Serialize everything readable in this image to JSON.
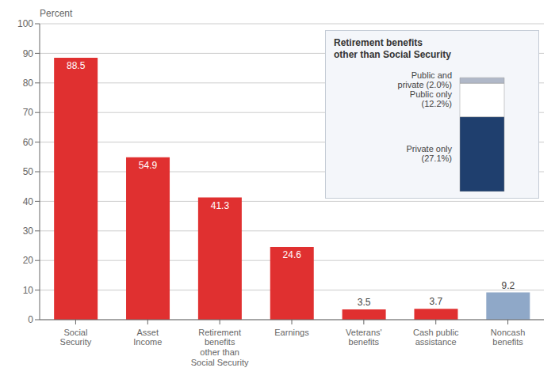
{
  "chart_data": [
    {
      "type": "bar",
      "categories": [
        "Social\nSecurity",
        "Asset\nIncome",
        "Retirement\nbenefits\nother than\nSocial Security",
        "Earnings",
        "Veterans'\nbenefits",
        "Cash public\nassistance",
        "Noncash\nbenefits"
      ],
      "values": [
        88.5,
        54.9,
        41.3,
        24.6,
        3.5,
        3.7,
        9.2
      ],
      "colors": [
        "#e03030",
        "#e03030",
        "#e03030",
        "#e03030",
        "#e03030",
        "#e03030",
        "#8fa8c8"
      ],
      "ylabel": "Percent",
      "ylim": [
        0,
        100
      ],
      "yticks": [
        0,
        10,
        20,
        30,
        40,
        50,
        60,
        70,
        80,
        90,
        100
      ],
      "grid": true,
      "data_labels": true
    },
    {
      "type": "bar",
      "title": "Retirement benefits\nother than Social Security",
      "stacked": true,
      "categories": [
        null
      ],
      "series": [
        {
          "name": "Private only\n(27.1%)",
          "color": "#1f3f6e",
          "values": [
            27.1
          ]
        },
        {
          "name": "Public only\n(12.2%)",
          "color": "#ffffff",
          "values": [
            12.2
          ]
        },
        {
          "name": "Public and\nprivate (2.0%)",
          "color": "#b0b8c8",
          "values": [
            2.0
          ]
        }
      ],
      "ylim": [
        0,
        43.365
      ],
      "tick_labels": false
    }
  ]
}
